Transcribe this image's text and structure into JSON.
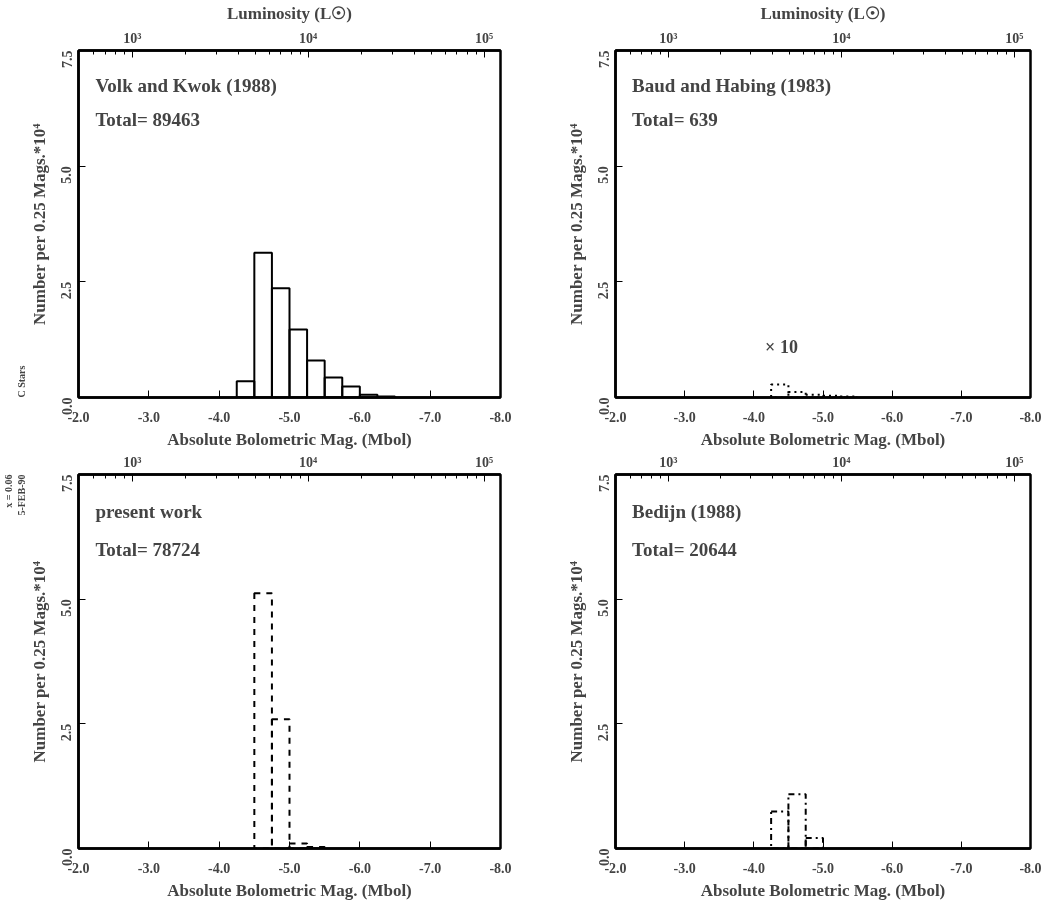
{
  "chart_data": [
    {
      "type": "histogram",
      "title": "Volk and Kwok (1988)",
      "subtitle": "Total=  89463",
      "xlabel": "Absolute Bolometric Mag. (Mbol)",
      "ylabel": "Number per 0.25 Mags.*10⁴",
      "x2label": "Luminosity (L☉)",
      "bins": [
        -4.25,
        -4.5,
        -4.75,
        -5.0,
        -5.25,
        -5.5,
        -5.75,
        -6.0,
        -6.25,
        -6.5
      ],
      "values": [
        0.35,
        3.13,
        2.36,
        1.47,
        0.8,
        0.43,
        0.24,
        0.06,
        0.02
      ],
      "color": "#000000",
      "line_style": "solid",
      "xlim": [
        -2,
        -8
      ],
      "xticks": [
        {
          "value": -2,
          "label": "-2.0"
        },
        {
          "value": -3,
          "label": "-3.0"
        },
        {
          "value": -4,
          "label": "-4.0"
        },
        {
          "value": -5,
          "label": "-5.0"
        },
        {
          "value": -6,
          "label": "-6.0"
        },
        {
          "value": -7,
          "label": "-7.0"
        },
        {
          "value": -8,
          "label": "-8.0"
        }
      ],
      "ylim": [
        0,
        7.5
      ],
      "yticks": [
        {
          "value": 0,
          "label": "0.0"
        },
        {
          "value": 2.5,
          "label": "2.5"
        },
        {
          "value": 5,
          "label": "5.0"
        },
        {
          "value": 7.5,
          "label": "7.5"
        }
      ],
      "x2lim": [
        494,
        124000
      ],
      "log": "x2",
      "x2ticks": [
        {
          "value": 600,
          "label": null
        },
        {
          "value": 700,
          "label": null
        },
        {
          "value": 800,
          "label": null
        },
        {
          "value": 900,
          "label": null
        },
        {
          "value": 1000,
          "label": "10³"
        },
        {
          "value": 2000,
          "label": null
        },
        {
          "value": 3000,
          "label": null
        },
        {
          "value": 4000,
          "label": null
        },
        {
          "value": 5000,
          "label": null
        },
        {
          "value": 6000,
          "label": null
        },
        {
          "value": 7000,
          "label": null
        },
        {
          "value": 8000,
          "label": null
        },
        {
          "value": 9000,
          "label": null
        },
        {
          "value": 10000,
          "label": "10⁴"
        },
        {
          "value": 20000,
          "label": null
        },
        {
          "value": 30000,
          "label": null
        },
        {
          "value": 40000,
          "label": null
        },
        {
          "value": 50000,
          "label": null
        },
        {
          "value": 60000,
          "label": null
        },
        {
          "value": 70000,
          "label": null
        },
        {
          "value": 80000,
          "label": null
        },
        {
          "value": 90000,
          "label": null
        },
        {
          "value": 100000,
          "label": "10⁵"
        }
      ],
      "annotations": [
        "C Stars"
      ]
    },
    {
      "type": "histogram",
      "title": "Baud and Habing (1983)",
      "subtitle": "Total=    639",
      "xlabel": "Absolute Bolometric Mag. (Mbol)",
      "ylabel": "Number per 0.25 Mags.*10⁴",
      "x2label": "Luminosity (L☉)",
      "bins": [
        -4.25,
        -4.5,
        -4.75,
        -5.0,
        -5.25,
        -5.5
      ],
      "values": [
        0.28,
        0.12,
        0.06,
        0.04,
        0.02
      ],
      "color": "#000000",
      "line_style": "dotted",
      "xlim": [
        -2,
        -8
      ],
      "xticks": [
        {
          "value": -2,
          "label": "-2.0"
        },
        {
          "value": -3,
          "label": "-3.0"
        },
        {
          "value": -4,
          "label": "-4.0"
        },
        {
          "value": -5,
          "label": "-5.0"
        },
        {
          "value": -6,
          "label": "-6.0"
        },
        {
          "value": -7,
          "label": "-7.0"
        },
        {
          "value": -8,
          "label": "-8.0"
        }
      ],
      "ylim": [
        0,
        7.5
      ],
      "yticks": [
        {
          "value": 0,
          "label": "0.0"
        },
        {
          "value": 2.5,
          "label": "2.5"
        },
        {
          "value": 5,
          "label": "5.0"
        },
        {
          "value": 7.5,
          "label": "7.5"
        }
      ],
      "x2lim": [
        494,
        124000
      ],
      "log": "x2",
      "x2ticks": [
        {
          "value": 600,
          "label": null
        },
        {
          "value": 700,
          "label": null
        },
        {
          "value": 800,
          "label": null
        },
        {
          "value": 900,
          "label": null
        },
        {
          "value": 1000,
          "label": "10³"
        },
        {
          "value": 2000,
          "label": null
        },
        {
          "value": 3000,
          "label": null
        },
        {
          "value": 4000,
          "label": null
        },
        {
          "value": 5000,
          "label": null
        },
        {
          "value": 6000,
          "label": null
        },
        {
          "value": 7000,
          "label": null
        },
        {
          "value": 8000,
          "label": null
        },
        {
          "value": 9000,
          "label": null
        },
        {
          "value": 10000,
          "label": "10⁴"
        },
        {
          "value": 20000,
          "label": null
        },
        {
          "value": 30000,
          "label": null
        },
        {
          "value": 40000,
          "label": null
        },
        {
          "value": 50000,
          "label": null
        },
        {
          "value": 60000,
          "label": null
        },
        {
          "value": 70000,
          "label": null
        },
        {
          "value": 80000,
          "label": null
        },
        {
          "value": 90000,
          "label": null
        },
        {
          "value": 100000,
          "label": "10⁵"
        }
      ],
      "annotations": [
        "× 10"
      ]
    },
    {
      "type": "histogram",
      "title": "present work",
      "subtitle": "Total=  78724",
      "xlabel": "Absolute Bolometric Mag. (Mbol)",
      "ylabel": "Number per 0.25 Mags.*10⁴",
      "bins": [
        -4.5,
        -4.75,
        -5.0,
        -5.25,
        -5.5
      ],
      "values": [
        5.12,
        2.59,
        0.1,
        0.03
      ],
      "color": "#000000",
      "line_style": "dashed",
      "xlim": [
        -2,
        -8
      ],
      "xticks": [
        {
          "value": -2,
          "label": "-2.0"
        },
        {
          "value": -3,
          "label": "-3.0"
        },
        {
          "value": -4,
          "label": "-4.0"
        },
        {
          "value": -5,
          "label": "-5.0"
        },
        {
          "value": -6,
          "label": "-6.0"
        },
        {
          "value": -7,
          "label": "-7.0"
        },
        {
          "value": -8,
          "label": "-8.0"
        }
      ],
      "ylim": [
        0,
        7.5
      ],
      "yticks": [
        {
          "value": 0,
          "label": "0.0"
        },
        {
          "value": 2.5,
          "label": "2.5"
        },
        {
          "value": 5,
          "label": "5.0"
        },
        {
          "value": 7.5,
          "label": "7.5"
        }
      ],
      "x2lim": [
        494,
        124000
      ],
      "log": "x2",
      "x2ticks": [
        {
          "value": 600,
          "label": null
        },
        {
          "value": 700,
          "label": null
        },
        {
          "value": 800,
          "label": null
        },
        {
          "value": 900,
          "label": null
        },
        {
          "value": 1000,
          "label": "10³"
        },
        {
          "value": 2000,
          "label": null
        },
        {
          "value": 3000,
          "label": null
        },
        {
          "value": 4000,
          "label": null
        },
        {
          "value": 5000,
          "label": null
        },
        {
          "value": 6000,
          "label": null
        },
        {
          "value": 7000,
          "label": null
        },
        {
          "value": 8000,
          "label": null
        },
        {
          "value": 9000,
          "label": null
        },
        {
          "value": 10000,
          "label": "10⁴"
        },
        {
          "value": 20000,
          "label": null
        },
        {
          "value": 30000,
          "label": null
        },
        {
          "value": 40000,
          "label": null
        },
        {
          "value": 50000,
          "label": null
        },
        {
          "value": 60000,
          "label": null
        },
        {
          "value": 70000,
          "label": null
        },
        {
          "value": 80000,
          "label": null
        },
        {
          "value": 90000,
          "label": null
        },
        {
          "value": 100000,
          "label": "10⁵"
        }
      ],
      "annotations": [
        "5-FEB-90",
        "x = 0.06"
      ]
    },
    {
      "type": "histogram",
      "title": "Bedijn (1988)",
      "subtitle": "Total=  20644",
      "xlabel": "Absolute Bolometric Mag. (Mbol)",
      "ylabel": "Number per 0.25 Mags.*10⁴",
      "bins": [
        -4.25,
        -4.5,
        -4.75,
        -5.0
      ],
      "values": [
        0.74,
        1.09,
        0.21
      ],
      "color": "#000000",
      "line_style": "dashdot",
      "xlim": [
        -2,
        -8
      ],
      "xticks": [
        {
          "value": -2,
          "label": "-2.0"
        },
        {
          "value": -3,
          "label": "-3.0"
        },
        {
          "value": -4,
          "label": "-4.0"
        },
        {
          "value": -5,
          "label": "-5.0"
        },
        {
          "value": -6,
          "label": "-6.0"
        },
        {
          "value": -7,
          "label": "-7.0"
        },
        {
          "value": -8,
          "label": "-8.0"
        }
      ],
      "ylim": [
        0,
        7.5
      ],
      "yticks": [
        {
          "value": 0,
          "label": "0.0"
        },
        {
          "value": 2.5,
          "label": "2.5"
        },
        {
          "value": 5,
          "label": "5.0"
        },
        {
          "value": 7.5,
          "label": "7.5"
        }
      ],
      "x2lim": [
        494,
        124000
      ],
      "log": "x2",
      "x2ticks": [
        {
          "value": 600,
          "label": null
        },
        {
          "value": 700,
          "label": null
        },
        {
          "value": 800,
          "label": null
        },
        {
          "value": 900,
          "label": null
        },
        {
          "value": 1000,
          "label": "10³"
        },
        {
          "value": 2000,
          "label": null
        },
        {
          "value": 3000,
          "label": null
        },
        {
          "value": 4000,
          "label": null
        },
        {
          "value": 5000,
          "label": null
        },
        {
          "value": 6000,
          "label": null
        },
        {
          "value": 7000,
          "label": null
        },
        {
          "value": 8000,
          "label": null
        },
        {
          "value": 9000,
          "label": null
        },
        {
          "value": 10000,
          "label": "10⁴"
        },
        {
          "value": 20000,
          "label": null
        },
        {
          "value": 30000,
          "label": null
        },
        {
          "value": 40000,
          "label": null
        },
        {
          "value": 50000,
          "label": null
        },
        {
          "value": 60000,
          "label": null
        },
        {
          "value": 70000,
          "label": null
        },
        {
          "value": 80000,
          "label": null
        },
        {
          "value": 90000,
          "label": null
        },
        {
          "value": 100000,
          "label": "10⁵"
        }
      ]
    }
  ]
}
